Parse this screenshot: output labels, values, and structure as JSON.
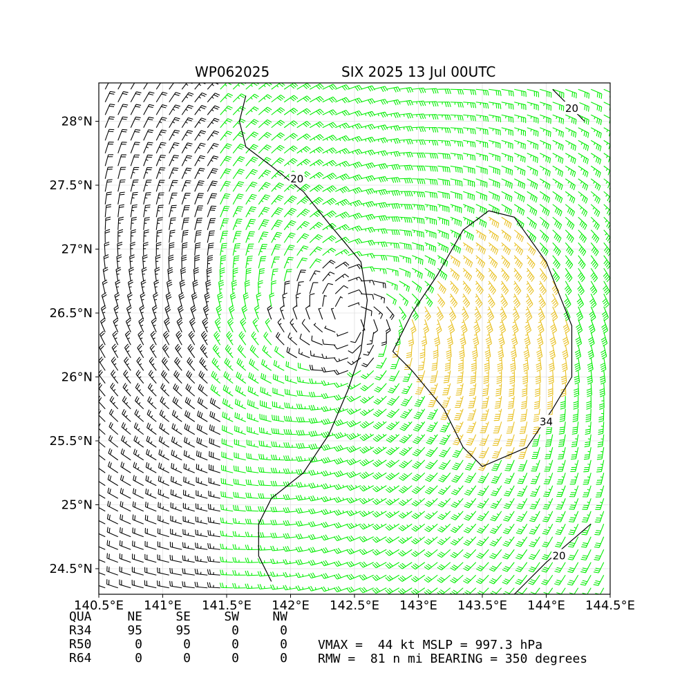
{
  "header": {
    "storm_id": "WP062025",
    "storm_time": "SIX 2025 13 Jul 00UTC"
  },
  "chart_data": {
    "type": "wind-barb-map",
    "x_ticks": [
      "140.5°E",
      "141°E",
      "141.5°E",
      "142°E",
      "142.5°E",
      "143°E",
      "143.5°E",
      "144°E",
      "144.5°E"
    ],
    "x_tick_values": [
      140.5,
      141.0,
      141.5,
      142.0,
      142.5,
      143.0,
      143.5,
      144.0,
      144.5
    ],
    "y_ticks": [
      "24.5°N",
      "25°N",
      "25.5°N",
      "26°N",
      "26.5°N",
      "27°N",
      "27.5°N",
      "28°N"
    ],
    "y_tick_values": [
      24.5,
      25.0,
      25.5,
      26.0,
      26.5,
      27.0,
      27.5,
      28.0
    ],
    "xlim": [
      140.5,
      144.5
    ],
    "ylim": [
      24.3,
      28.3
    ],
    "grid": true,
    "center": {
      "lon": 142.45,
      "lat": 26.45
    },
    "vmax_kt": 44,
    "rmw_nmi": 81,
    "contours": [
      {
        "label": "20",
        "points": [
          [
            141.65,
            28.2
          ],
          [
            141.6,
            28.0
          ],
          [
            141.65,
            27.8
          ],
          [
            141.85,
            27.65
          ],
          [
            142.1,
            27.45
          ],
          [
            142.3,
            27.2
          ],
          [
            142.55,
            26.9
          ],
          [
            142.6,
            26.6
          ],
          [
            142.55,
            26.2
          ],
          [
            142.45,
            25.9
          ],
          [
            142.3,
            25.55
          ],
          [
            142.1,
            25.25
          ],
          [
            141.85,
            25.05
          ],
          [
            141.75,
            24.85
          ],
          [
            141.75,
            24.6
          ],
          [
            141.85,
            24.4
          ]
        ],
        "label_at": [
          142.05,
          27.55
        ]
      },
      {
        "label": "20",
        "points": [
          [
            143.75,
            24.3
          ],
          [
            144.0,
            24.55
          ],
          [
            144.35,
            24.85
          ]
        ],
        "label_at": [
          144.1,
          24.6
        ]
      },
      {
        "label": "20",
        "points": [
          [
            144.05,
            28.25
          ],
          [
            144.3,
            28.0
          ]
        ],
        "label_at": [
          144.2,
          28.1
        ]
      },
      {
        "label": "34",
        "points": [
          [
            143.55,
            27.3
          ],
          [
            143.75,
            27.25
          ],
          [
            144.0,
            26.9
          ],
          [
            144.2,
            26.4
          ],
          [
            144.2,
            26.0
          ],
          [
            144.05,
            25.75
          ],
          [
            143.85,
            25.45
          ],
          [
            143.5,
            25.3
          ],
          [
            143.35,
            25.45
          ],
          [
            143.2,
            25.75
          ],
          [
            142.95,
            26.05
          ],
          [
            142.8,
            26.2
          ],
          [
            142.95,
            26.5
          ],
          [
            143.15,
            26.8
          ],
          [
            143.35,
            27.15
          ],
          [
            143.55,
            27.3
          ]
        ],
        "label_at": [
          144.0,
          25.65
        ]
      }
    ],
    "colors": {
      "below_34": "#000000",
      "from_34": "#00ee00",
      "above_34_contour": "#e8c020"
    }
  },
  "wind_radii": {
    "headers": [
      "QUA",
      "NE",
      "SE",
      "SW",
      "NW"
    ],
    "rows": [
      {
        "label": "R34",
        "values": [
          "95",
          "95",
          "0",
          "0"
        ]
      },
      {
        "label": "R50",
        "values": [
          "0",
          "0",
          "0",
          "0"
        ]
      },
      {
        "label": "R64",
        "values": [
          "0",
          "0",
          "0",
          "0"
        ]
      }
    ]
  },
  "info": {
    "line1": "VMAX =  44 kt MSLP = 997.3 hPa",
    "line2": "RMW =  81 n mi BEARING = 350 degrees"
  }
}
